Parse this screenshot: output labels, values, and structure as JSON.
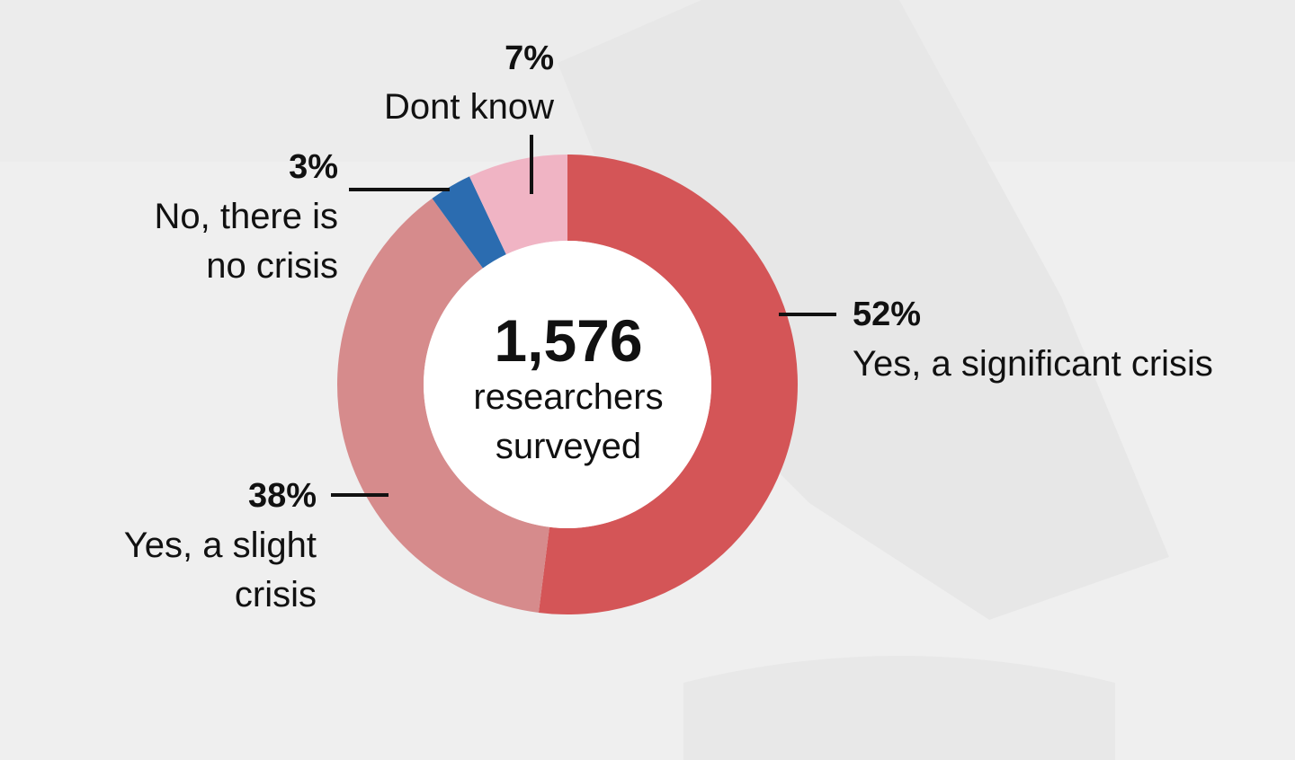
{
  "chart_data": {
    "type": "pie",
    "donut": true,
    "slices": [
      {
        "label": "Yes, a significant crisis",
        "value": 52,
        "color": "#d45557"
      },
      {
        "label": "Yes, a slight crisis",
        "value": 38,
        "color": "#d68b8c"
      },
      {
        "label": "No, there is no crisis",
        "value": 3,
        "color": "#2b6cb0"
      },
      {
        "label": "Dont know",
        "value": 7,
        "color": "#f0b4c4"
      }
    ],
    "center": {
      "total": "1,576",
      "line1": "researchers",
      "line2": "surveyed"
    },
    "labels": {
      "significant": {
        "pct": "52%",
        "lines": [
          "Yes, a significant crisis"
        ]
      },
      "slight": {
        "pct": "38%",
        "lines": [
          "Yes, a slight",
          "crisis"
        ]
      },
      "no": {
        "pct": "3%",
        "lines": [
          "No, there is",
          "no crisis"
        ]
      },
      "dontknow": {
        "pct": "7%",
        "lines": [
          "Dont know"
        ]
      }
    },
    "background_color": "#ececec"
  }
}
